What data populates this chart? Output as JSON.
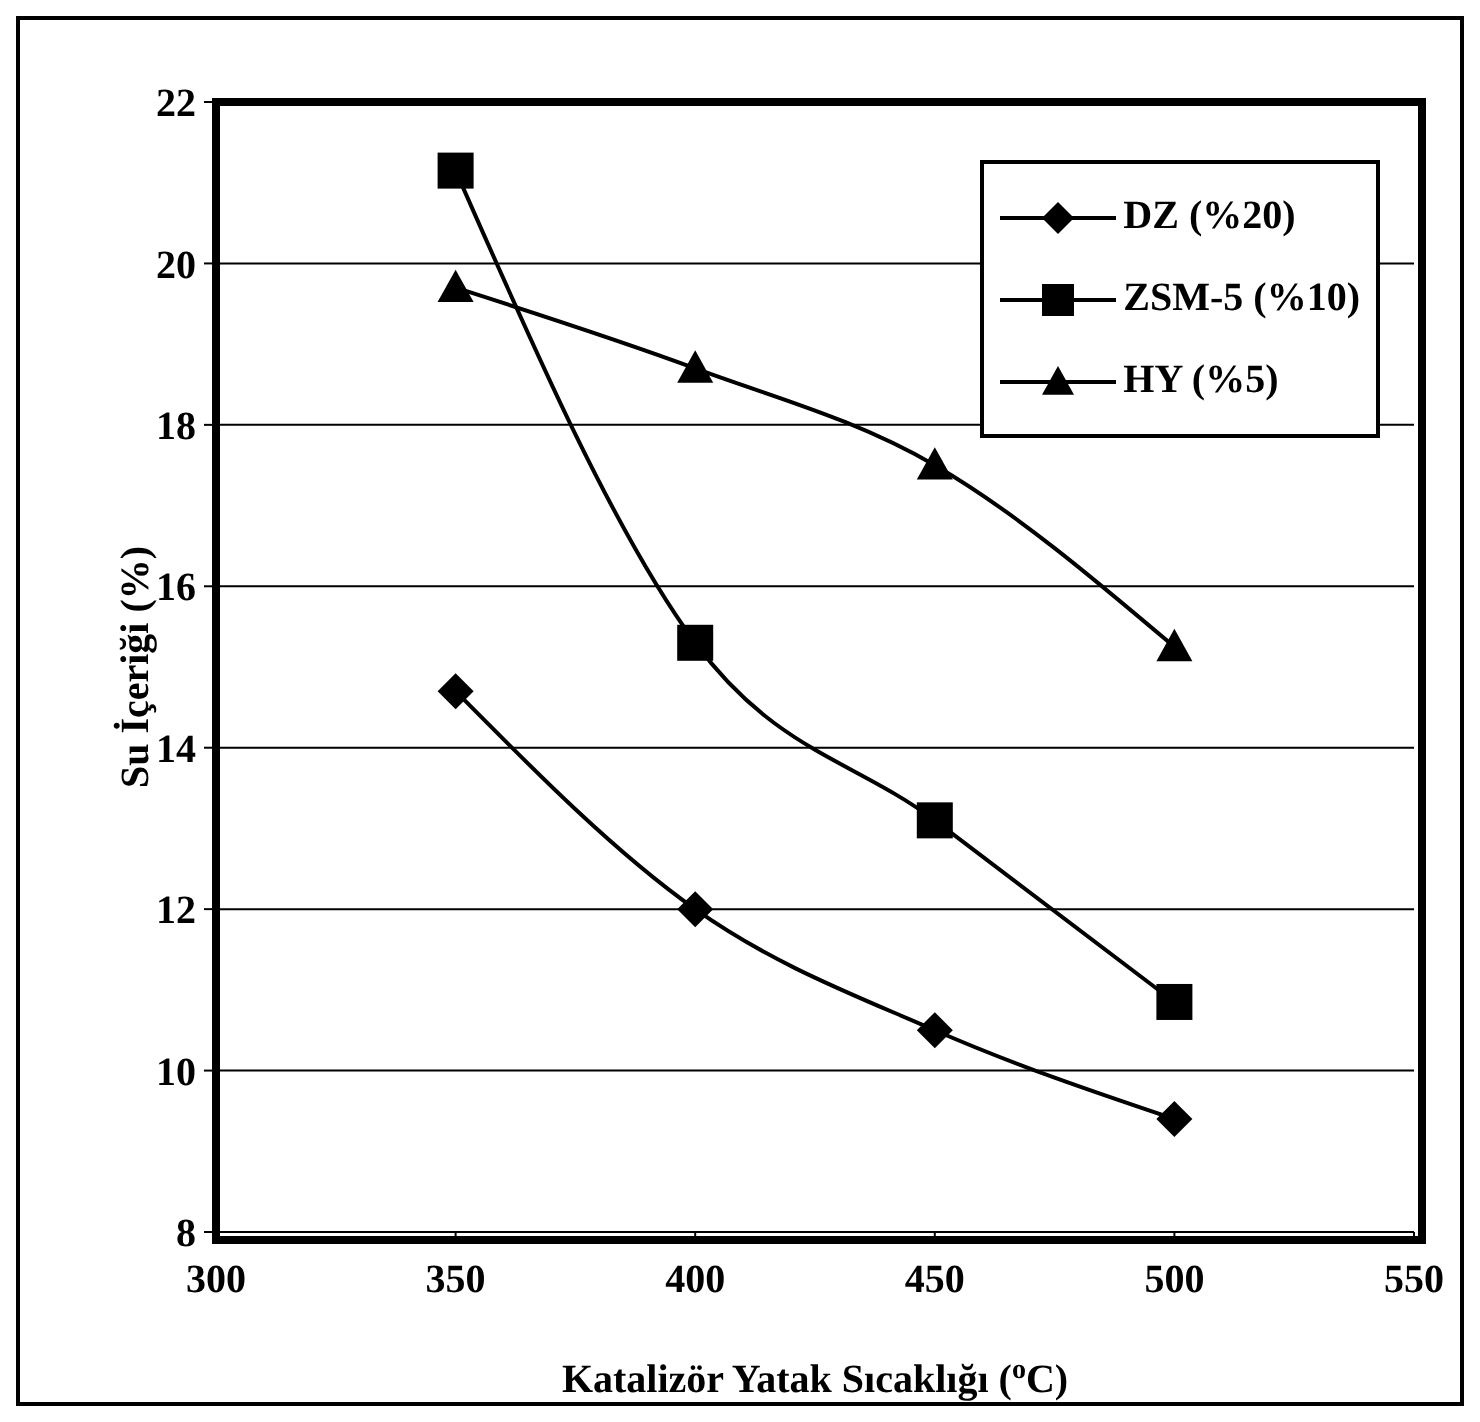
{
  "chart_data": {
    "type": "line",
    "xlabel": "Katalizör Yatak Sıcaklığı ($^{o}$C)",
    "ylabel": "Su İçeriği (%)",
    "x": [
      350,
      400,
      450,
      500
    ],
    "series": [
      {
        "name": "DZ (%20)",
        "color": "#000000",
        "marker": "diamond",
        "values": [
          14.7,
          12.0,
          10.5,
          9.4
        ]
      },
      {
        "name": "ZSM-5 (%10)",
        "color": "#000000",
        "marker": "square",
        "values": [
          21.15,
          15.3,
          13.1,
          10.85
        ]
      },
      {
        "name": "HY (%5)",
        "color": "#000000",
        "marker": "triangle",
        "values": [
          19.7,
          18.7,
          17.5,
          15.25
        ]
      }
    ],
    "xlim": [
      300,
      550
    ],
    "xticks": [
      300,
      350,
      400,
      450,
      500,
      550
    ],
    "ylim": [
      8,
      22
    ],
    "yticks": [
      8,
      10,
      12,
      14,
      16,
      18,
      20,
      22
    ],
    "grid": "y",
    "legend": "top right",
    "line_style": "solid"
  }
}
